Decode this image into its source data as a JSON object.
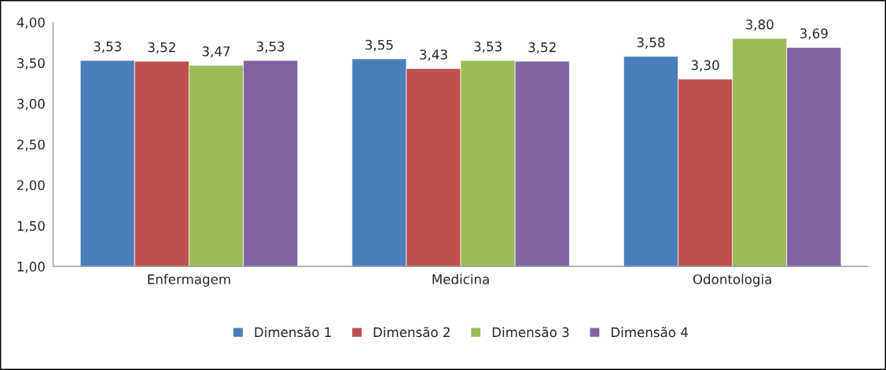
{
  "chart_data": {
    "type": "bar",
    "categories": [
      "Enfermagem",
      "Medicina",
      "Odontologia"
    ],
    "series": [
      {
        "name": "Dimensão 1",
        "color": "#4a7ebb",
        "values": [
          3.53,
          3.55,
          3.58
        ],
        "value_labels": [
          "3,53",
          "3,55",
          "3,58"
        ]
      },
      {
        "name": "Dimensão 2",
        "color": "#c0504d",
        "values": [
          3.52,
          3.43,
          3.3
        ],
        "value_labels": [
          "3,52",
          "3,43",
          "3,30"
        ]
      },
      {
        "name": "Dimensão 3",
        "color": "#9bbb59",
        "values": [
          3.47,
          3.53,
          3.8
        ],
        "value_labels": [
          "3,47",
          "3,53",
          "3,80"
        ]
      },
      {
        "name": "Dimensão 4",
        "color": "#8064a2",
        "values": [
          3.53,
          3.52,
          3.69
        ],
        "value_labels": [
          "3,53",
          "3,52",
          "3,69"
        ]
      }
    ],
    "ylim": [
      1,
      4
    ],
    "yticks": [
      {
        "value": 1,
        "label": "1,00"
      },
      {
        "value": 1.5,
        "label": "1,50"
      },
      {
        "value": 2,
        "label": "2,00"
      },
      {
        "value": 2.5,
        "label": "2,50"
      },
      {
        "value": 3,
        "label": "3,00"
      },
      {
        "value": 3.5,
        "label": "3,50"
      },
      {
        "value": 4,
        "label": "4,00"
      }
    ],
    "grid": false,
    "legend": "bottom"
  }
}
